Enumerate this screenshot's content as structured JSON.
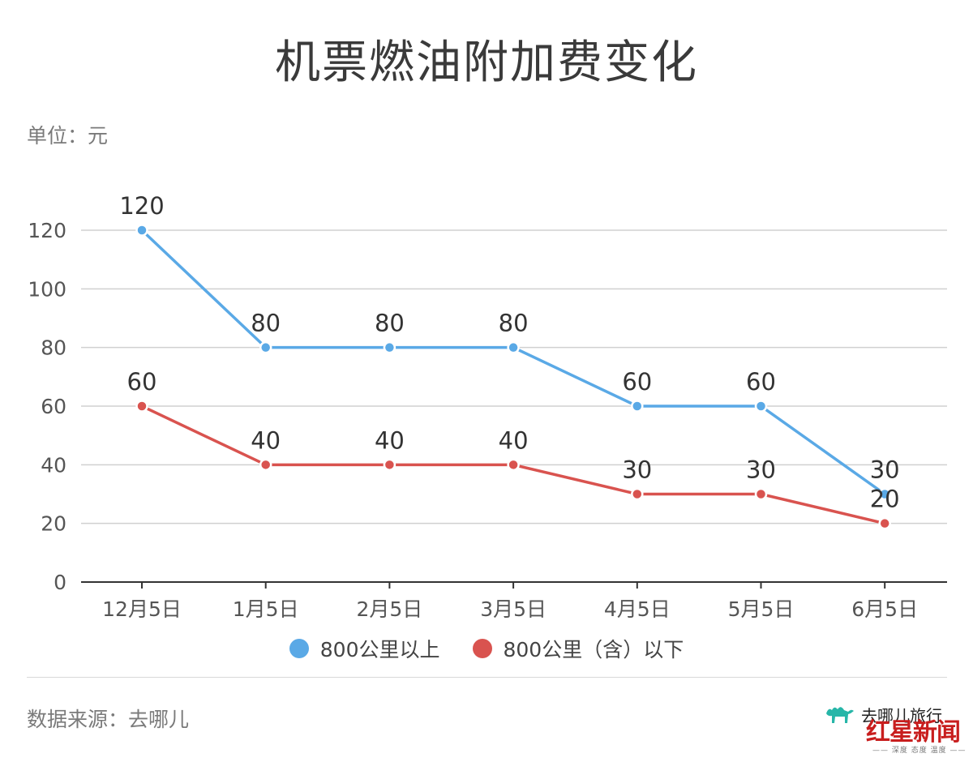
{
  "header": {
    "title": "机票燃油附加费变化",
    "unit": "单位：元"
  },
  "footer": {
    "source": "数据来源：去哪儿",
    "brand_text": "去哪儿旅行",
    "news_logo": "红星新闻",
    "news_tagline": "—— 深度 态度 温度 ——"
  },
  "colors": {
    "series_above": "#5aa9e6",
    "series_below": "#d9534f",
    "grid": "#d0d0d0",
    "axis": "#333333"
  },
  "chart_data": {
    "type": "line",
    "categories": [
      "12月5日",
      "1月5日",
      "2月5日",
      "3月5日",
      "4月5日",
      "5月5日",
      "6月5日"
    ],
    "ylim": [
      0,
      120
    ],
    "yticks": [
      0,
      20,
      40,
      60,
      80,
      100,
      120
    ],
    "grid": true,
    "legend_position": "bottom",
    "series": [
      {
        "name": "800公里以上",
        "values": [
          120,
          80,
          80,
          80,
          60,
          60,
          30
        ]
      },
      {
        "name": "800公里（含）以下",
        "values": [
          60,
          40,
          40,
          40,
          30,
          30,
          20
        ]
      }
    ]
  }
}
